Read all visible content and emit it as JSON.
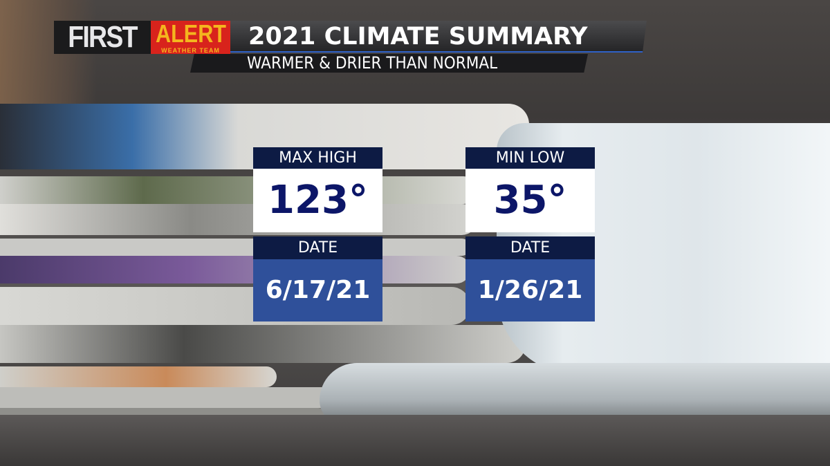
{
  "header": {
    "logo_first": "FIRST",
    "logo_alert": "ALERT",
    "logo_team": "WEATHER TEAM",
    "title": "2021 CLIMATE SUMMARY",
    "subtitle": "WARMER & DRIER THAN NORMAL"
  },
  "cards": [
    {
      "label": "MAX HIGH",
      "value": "123°",
      "date_label": "DATE",
      "date": "6/17/21"
    },
    {
      "label": "MIN LOW",
      "value": "35°",
      "date_label": "DATE",
      "date": "1/26/21"
    }
  ],
  "colors": {
    "navy": "#0d1b44",
    "blue": "#2f509a",
    "value_text": "#0c1668",
    "alert_red": "#d8231c",
    "alert_gold": "#f4b51e"
  }
}
